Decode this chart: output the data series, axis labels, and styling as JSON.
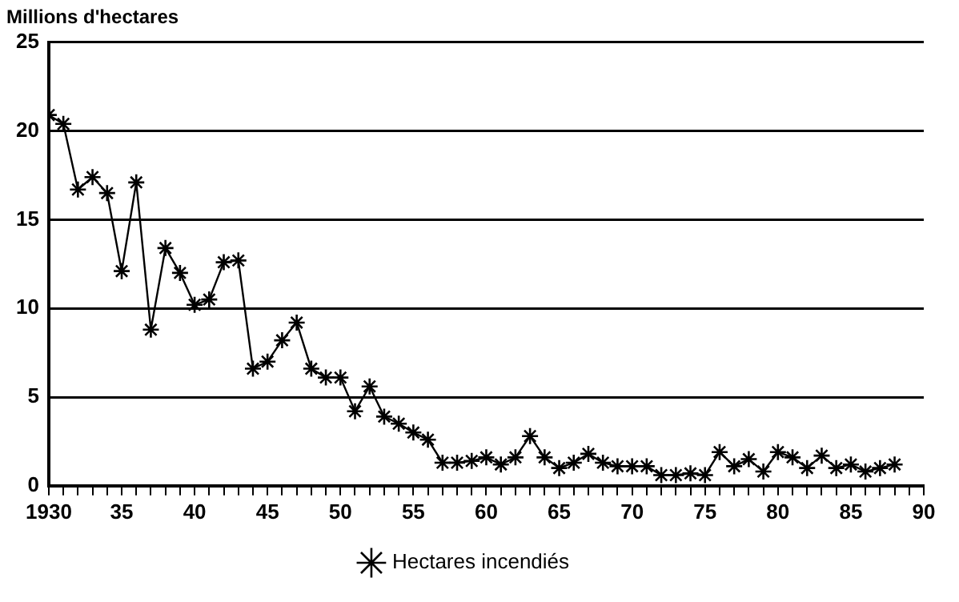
{
  "chart_data": {
    "type": "line",
    "ylabel": "Millions d'hectares",
    "series": [
      {
        "name": "Hectares incendiés",
        "color": "#000000",
        "x": [
          1930,
          1931,
          1932,
          1933,
          1934,
          1935,
          1936,
          1937,
          1938,
          1939,
          1940,
          1941,
          1942,
          1943,
          1944,
          1945,
          1946,
          1947,
          1948,
          1949,
          1950,
          1951,
          1952,
          1953,
          1954,
          1955,
          1956,
          1957,
          1958,
          1959,
          1960,
          1961,
          1962,
          1963,
          1964,
          1965,
          1966,
          1967,
          1968,
          1969,
          1970,
          1971,
          1972,
          1973,
          1974,
          1975,
          1976,
          1977,
          1978,
          1979,
          1980,
          1981,
          1982,
          1983,
          1984,
          1985,
          1986,
          1987,
          1988
        ],
        "values": [
          20.9,
          20.4,
          16.7,
          17.4,
          16.5,
          12.1,
          17.1,
          8.8,
          13.4,
          12.0,
          10.2,
          10.5,
          12.6,
          12.7,
          6.6,
          7.0,
          8.2,
          9.2,
          6.6,
          6.1,
          6.1,
          4.2,
          5.6,
          3.9,
          3.5,
          3.0,
          2.6,
          1.3,
          1.3,
          1.4,
          1.6,
          1.2,
          1.6,
          2.8,
          1.6,
          1.0,
          1.3,
          1.8,
          1.3,
          1.1,
          1.1,
          1.1,
          0.6,
          0.6,
          0.7,
          0.6,
          1.9,
          1.1,
          1.5,
          0.8,
          1.9,
          1.6,
          1.0,
          1.7,
          1.0,
          1.2,
          0.8,
          1.0,
          1.2
        ]
      }
    ],
    "xlim": [
      1930,
      1990
    ],
    "xticks": [
      {
        "value": 1930,
        "label": "1930"
      },
      {
        "value": 1931,
        "label": null
      },
      {
        "value": 1932,
        "label": null
      },
      {
        "value": 1933,
        "label": null
      },
      {
        "value": 1934,
        "label": null
      },
      {
        "value": 1935,
        "label": "35"
      },
      {
        "value": 1936,
        "label": null
      },
      {
        "value": 1937,
        "label": null
      },
      {
        "value": 1938,
        "label": null
      },
      {
        "value": 1939,
        "label": null
      },
      {
        "value": 1940,
        "label": "40"
      },
      {
        "value": 1941,
        "label": null
      },
      {
        "value": 1942,
        "label": null
      },
      {
        "value": 1943,
        "label": null
      },
      {
        "value": 1944,
        "label": null
      },
      {
        "value": 1945,
        "label": "45"
      },
      {
        "value": 1946,
        "label": null
      },
      {
        "value": 1947,
        "label": null
      },
      {
        "value": 1948,
        "label": null
      },
      {
        "value": 1949,
        "label": null
      },
      {
        "value": 1950,
        "label": "50"
      },
      {
        "value": 1951,
        "label": null
      },
      {
        "value": 1952,
        "label": null
      },
      {
        "value": 1953,
        "label": null
      },
      {
        "value": 1954,
        "label": null
      },
      {
        "value": 1955,
        "label": "55"
      },
      {
        "value": 1956,
        "label": null
      },
      {
        "value": 1957,
        "label": null
      },
      {
        "value": 1958,
        "label": null
      },
      {
        "value": 1959,
        "label": null
      },
      {
        "value": 1960,
        "label": "60"
      },
      {
        "value": 1961,
        "label": null
      },
      {
        "value": 1962,
        "label": null
      },
      {
        "value": 1963,
        "label": null
      },
      {
        "value": 1964,
        "label": null
      },
      {
        "value": 1965,
        "label": "65"
      },
      {
        "value": 1966,
        "label": null
      },
      {
        "value": 1967,
        "label": null
      },
      {
        "value": 1968,
        "label": null
      },
      {
        "value": 1969,
        "label": null
      },
      {
        "value": 1970,
        "label": "70"
      },
      {
        "value": 1971,
        "label": null
      },
      {
        "value": 1972,
        "label": null
      },
      {
        "value": 1973,
        "label": null
      },
      {
        "value": 1974,
        "label": null
      },
      {
        "value": 1975,
        "label": "75"
      },
      {
        "value": 1976,
        "label": null
      },
      {
        "value": 1977,
        "label": null
      },
      {
        "value": 1978,
        "label": null
      },
      {
        "value": 1979,
        "label": null
      },
      {
        "value": 1980,
        "label": "80"
      },
      {
        "value": 1981,
        "label": null
      },
      {
        "value": 1982,
        "label": null
      },
      {
        "value": 1983,
        "label": null
      },
      {
        "value": 1984,
        "label": null
      },
      {
        "value": 1985,
        "label": "85"
      },
      {
        "value": 1986,
        "label": null
      },
      {
        "value": 1987,
        "label": null
      },
      {
        "value": 1988,
        "label": null
      },
      {
        "value": 1989,
        "label": null
      },
      {
        "value": 1990,
        "label": "90"
      }
    ],
    "ylim": [
      0,
      25
    ],
    "yticks": [
      0,
      5,
      10,
      15,
      20,
      25
    ],
    "grid": "y",
    "legend": "bottom",
    "marker": "cross",
    "line_style": "solid"
  }
}
